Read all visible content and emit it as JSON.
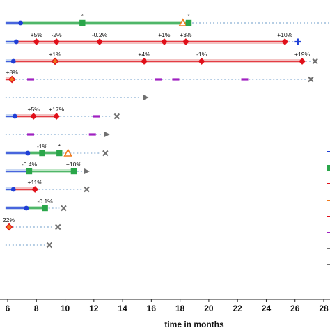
{
  "chart_data": {
    "type": "swimmer",
    "xlabel": "time in months",
    "x_ticks": [
      6,
      8,
      10,
      12,
      14,
      16,
      18,
      20,
      22,
      24,
      26,
      28
    ],
    "xlim": [
      5.85,
      28.4
    ],
    "colors": {
      "blue": "#1f3fd6",
      "green": "#2aa64a",
      "red": "#e0101a",
      "orange": "#f07a1c",
      "purple": "#a020c0",
      "gray": "#707070",
      "dots": "#b5cde4",
      "band_blue": "#c9d8f2",
      "band_green": "#bfe6c6",
      "band_red": "#f3c3c3"
    },
    "rows": [
      {
        "segments": [
          {
            "from": 5.85,
            "to": 6.9,
            "color": "blue"
          },
          {
            "from": 6.9,
            "to": 18.6,
            "color": "green"
          }
        ],
        "dotted_to": 28.4,
        "markers": [
          {
            "x": 6.9,
            "kind": "circle",
            "color": "blue"
          },
          {
            "x": 11.2,
            "kind": "square",
            "color": "green",
            "label": "*"
          },
          {
            "x": 18.2,
            "kind": "triangle",
            "color": "orange"
          },
          {
            "x": 18.6,
            "kind": "square",
            "color": "green",
            "label": "*"
          }
        ]
      },
      {
        "segments": [
          {
            "from": 5.85,
            "to": 6.6,
            "color": "blue"
          },
          {
            "from": 6.6,
            "to": 25.3,
            "color": "red"
          }
        ],
        "dotted_to": 26.0,
        "end": "plus",
        "end_x": 26.2,
        "markers": [
          {
            "x": 6.6,
            "kind": "circle",
            "color": "blue"
          },
          {
            "x": 8.0,
            "kind": "diamond",
            "color": "red",
            "label": "+5%"
          },
          {
            "x": 9.4,
            "kind": "diamond",
            "color": "red",
            "label": "-2%"
          },
          {
            "x": 12.4,
            "kind": "diamond",
            "color": "red",
            "label": "-0.2%"
          },
          {
            "x": 16.9,
            "kind": "diamond",
            "color": "red",
            "label": "+1%"
          },
          {
            "x": 18.4,
            "kind": "diamond",
            "color": "red",
            "label": "+3%"
          },
          {
            "x": 25.3,
            "kind": "diamond",
            "color": "red",
            "label": "+10%"
          }
        ]
      },
      {
        "segments": [
          {
            "from": 5.85,
            "to": 6.4,
            "color": "blue"
          },
          {
            "from": 6.4,
            "to": 26.5,
            "color": "red"
          }
        ],
        "dotted_to": 27.2,
        "end": "x",
        "end_x": 27.4,
        "markers": [
          {
            "x": 6.4,
            "kind": "circle",
            "color": "blue"
          },
          {
            "x": 9.3,
            "kind": "diamond",
            "color": "red",
            "fill": "orange",
            "label": "+1%"
          },
          {
            "x": 15.5,
            "kind": "diamond",
            "color": "red",
            "label": "+4%"
          },
          {
            "x": 19.5,
            "kind": "diamond",
            "color": "red",
            "label": "-1%"
          },
          {
            "x": 26.5,
            "kind": "diamond",
            "color": "red",
            "label": "+19%"
          }
        ]
      },
      {
        "segments": [
          {
            "from": 5.85,
            "to": 6.3,
            "color": "red"
          }
        ],
        "dotted_to": 26.8,
        "end": "x",
        "end_x": 27.1,
        "dashes": [
          7.6,
          16.5,
          17.7,
          22.5
        ],
        "markers": [
          {
            "x": 6.3,
            "kind": "diamond",
            "color": "red",
            "fill": "orange",
            "label": "+8%"
          }
        ]
      },
      {
        "segments": [],
        "dotted_to": 15.3,
        "end": "triangle",
        "end_x": 15.6,
        "markers": []
      },
      {
        "segments": [
          {
            "from": 5.85,
            "to": 6.5,
            "color": "blue"
          },
          {
            "from": 6.5,
            "to": 9.4,
            "color": "red"
          }
        ],
        "dotted_to": 13.2,
        "end": "x",
        "end_x": 13.6,
        "dashes": [
          12.2
        ],
        "markers": [
          {
            "x": 6.5,
            "kind": "circle",
            "color": "blue"
          },
          {
            "x": 7.8,
            "kind": "diamond",
            "color": "red",
            "label": "+5%"
          },
          {
            "x": 9.4,
            "kind": "diamond",
            "color": "red",
            "label": "+17%"
          }
        ]
      },
      {
        "segments": [],
        "dotted_to": 12.5,
        "end": "triangle",
        "end_x": 12.9,
        "dashes": [
          7.6,
          11.9
        ],
        "markers": []
      },
      {
        "segments": [
          {
            "from": 5.85,
            "to": 7.4,
            "color": "blue"
          },
          {
            "from": 7.4,
            "to": 9.6,
            "color": "green"
          }
        ],
        "dotted_to": 12.4,
        "end": "x",
        "end_x": 12.8,
        "markers": [
          {
            "x": 7.4,
            "kind": "circle",
            "color": "blue"
          },
          {
            "x": 8.4,
            "kind": "square",
            "color": "green",
            "label": "-1%"
          },
          {
            "x": 9.6,
            "kind": "square",
            "color": "green",
            "label": "*"
          },
          {
            "x": 10.2,
            "kind": "triangle",
            "color": "orange"
          }
        ]
      },
      {
        "segments": [
          {
            "from": 5.85,
            "to": 7.5,
            "color": "blue"
          },
          {
            "from": 7.5,
            "to": 10.6,
            "color": "green"
          }
        ],
        "dotted_to": 11.3,
        "end": "triangle",
        "end_x": 11.5,
        "markers": [
          {
            "x": 7.5,
            "kind": "circle",
            "color": "blue"
          },
          {
            "x": 7.5,
            "kind": "square",
            "color": "green",
            "label": "-0.4%"
          },
          {
            "x": 10.6,
            "kind": "square",
            "color": "green",
            "label": "+10%"
          }
        ]
      },
      {
        "segments": [
          {
            "from": 5.85,
            "to": 6.4,
            "color": "blue"
          },
          {
            "from": 6.4,
            "to": 7.9,
            "color": "red"
          }
        ],
        "dotted_to": 11.3,
        "end": "x",
        "end_x": 11.5,
        "markers": [
          {
            "x": 6.4,
            "kind": "circle",
            "color": "blue"
          },
          {
            "x": 7.9,
            "kind": "diamond",
            "color": "red",
            "label": "+11%"
          }
        ]
      },
      {
        "segments": [
          {
            "from": 5.85,
            "to": 7.3,
            "color": "blue"
          },
          {
            "from": 7.3,
            "to": 8.6,
            "color": "green"
          }
        ],
        "dotted_to": 9.6,
        "end": "x",
        "end_x": 9.9,
        "markers": [
          {
            "x": 7.3,
            "kind": "circle",
            "color": "blue"
          },
          {
            "x": 8.6,
            "kind": "square",
            "color": "green",
            "label": "-0.1%"
          }
        ]
      },
      {
        "segments": [],
        "dotted_to": 9.2,
        "end": "x",
        "end_x": 9.5,
        "markers": [
          {
            "x": 6.1,
            "kind": "diamond",
            "color": "red",
            "fill": "orange",
            "label": "22%",
            "label_align": "right"
          }
        ]
      },
      {
        "segments": [],
        "dotted_to": 8.6,
        "end": "x",
        "end_x": 8.9,
        "markers": []
      }
    ],
    "row_y": [
      33,
      60,
      88,
      114,
      140,
      167,
      193,
      220,
      246,
      272,
      299,
      326,
      352
    ],
    "legend_right_edge": [
      {
        "y": 218,
        "color": "blue",
        "kind": "line"
      },
      {
        "y": 241,
        "color": "green",
        "kind": "square"
      },
      {
        "y": 264,
        "color": "red",
        "kind": "line"
      },
      {
        "y": 288,
        "color": "orange",
        "kind": "line"
      },
      {
        "y": 311,
        "color": "red",
        "kind": "line"
      },
      {
        "y": 334,
        "color": "purple",
        "kind": "line"
      },
      {
        "y": 357,
        "color": "gray",
        "kind": "line"
      },
      {
        "y": 380,
        "color": "gray",
        "kind": "line"
      }
    ]
  }
}
